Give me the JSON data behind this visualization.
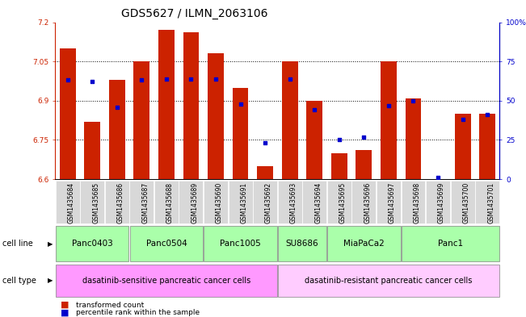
{
  "title": "GDS5627 / ILMN_2063106",
  "samples": [
    "GSM1435684",
    "GSM1435685",
    "GSM1435686",
    "GSM1435687",
    "GSM1435688",
    "GSM1435689",
    "GSM1435690",
    "GSM1435691",
    "GSM1435692",
    "GSM1435693",
    "GSM1435694",
    "GSM1435695",
    "GSM1435696",
    "GSM1435697",
    "GSM1435698",
    "GSM1435699",
    "GSM1435700",
    "GSM1435701"
  ],
  "bar_values": [
    7.1,
    6.82,
    6.98,
    7.05,
    7.17,
    7.16,
    7.08,
    6.95,
    6.65,
    7.05,
    6.9,
    6.7,
    6.71,
    7.05,
    6.91,
    6.6,
    6.85,
    6.85
  ],
  "percentile_values": [
    63,
    62,
    46,
    63,
    64,
    64,
    64,
    48,
    23,
    64,
    44,
    25,
    27,
    47,
    50,
    1,
    38,
    41
  ],
  "ylim_left": [
    6.6,
    7.2
  ],
  "ylim_right": [
    0,
    100
  ],
  "yticks_left": [
    6.6,
    6.75,
    6.9,
    7.05,
    7.2
  ],
  "yticks_right": [
    0,
    25,
    50,
    75,
    100
  ],
  "bar_color": "#cc2200",
  "dot_color": "#0000cc",
  "cell_lines_order": [
    "Panc0403",
    "Panc0504",
    "Panc1005",
    "SU8686",
    "MiaPaCa2",
    "Panc1"
  ],
  "cell_lines_ranges": [
    [
      0,
      2
    ],
    [
      3,
      5
    ],
    [
      6,
      8
    ],
    [
      9,
      10
    ],
    [
      11,
      13
    ],
    [
      14,
      17
    ]
  ],
  "cell_line_color": "#aaffaa",
  "cell_type_sensitive_color": "#ff99ff",
  "cell_type_resistant_color": "#ffccff",
  "sensitive_label": "dasatinib-sensitive pancreatic cancer cells",
  "resistant_label": "dasatinib-resistant pancreatic cancer cells",
  "legend_bar_label": "transformed count",
  "legend_dot_label": "percentile rank within the sample",
  "cell_line_label": "cell line",
  "cell_type_label": "cell type",
  "tick_color_left": "#cc2200",
  "tick_color_right": "#0000cc",
  "bg_color": "#ffffff",
  "grid_linestyle": ":",
  "title_fontsize": 10,
  "tick_fontsize": 6.5,
  "bar_width": 0.65
}
